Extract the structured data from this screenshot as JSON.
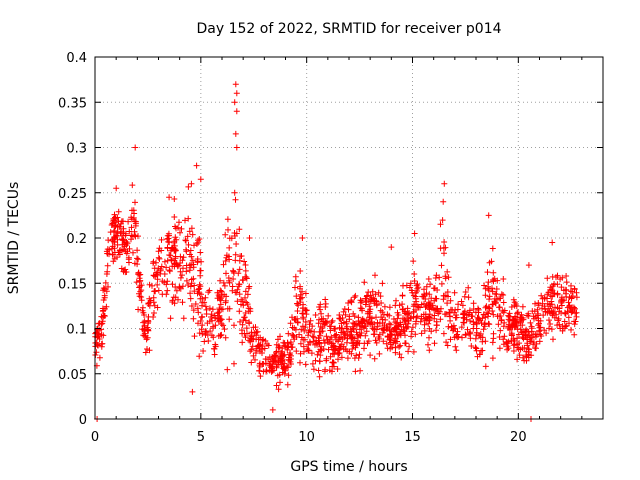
{
  "chart_data": {
    "type": "scatter",
    "title": "Day 152 of 2022, SRMTID for receiver p014",
    "xlabel": "GPS time / hours",
    "ylabel": "SRMTID / TECUs",
    "xlim": [
      0,
      24
    ],
    "ylim": [
      0,
      0.4
    ],
    "xticks": [
      0,
      5,
      10,
      15,
      20
    ],
    "xtick_labels": [
      "0",
      "5",
      "10",
      "15",
      "20"
    ],
    "yticks": [
      0,
      0.05,
      0.1,
      0.15,
      0.2,
      0.25,
      0.3,
      0.35,
      0.4
    ],
    "ytick_labels": [
      "0",
      "0.05",
      "0.1",
      "0.15",
      "0.2",
      "0.25",
      "0.3",
      "0.35",
      "0.4"
    ],
    "grid": true,
    "marker": "+",
    "color": "#ff0000",
    "envelope": {
      "x": [
        0,
        0.3,
        0.6,
        1.0,
        1.4,
        1.8,
        2.1,
        2.4,
        2.8,
        3.2,
        3.6,
        4.0,
        4.4,
        4.8,
        5.2,
        5.6,
        6.0,
        6.4,
        6.8,
        7.2,
        7.6,
        8.0,
        8.4,
        8.8,
        9.2,
        9.6,
        10.0,
        10.4,
        10.8,
        11.2,
        11.6,
        12.0,
        12.4,
        12.8,
        13.2,
        13.6,
        14.0,
        14.4,
        14.8,
        15.2,
        15.6,
        16.0,
        16.4,
        16.8,
        17.2,
        17.6,
        18.0,
        18.4,
        18.8,
        19.2,
        19.6,
        20.0,
        20.4,
        20.8,
        21.2,
        21.6,
        22.0,
        22.4,
        22.8
      ],
      "low": [
        0.05,
        0.06,
        0.1,
        0.16,
        0.15,
        0.16,
        0.1,
        0.05,
        0.09,
        0.12,
        0.1,
        0.09,
        0.07,
        0.06,
        0.06,
        0.06,
        0.05,
        0.05,
        0.06,
        0.04,
        0.04,
        0.03,
        0.02,
        0.03,
        0.03,
        0.04,
        0.05,
        0.03,
        0.04,
        0.03,
        0.05,
        0.05,
        0.04,
        0.05,
        0.05,
        0.06,
        0.06,
        0.06,
        0.05,
        0.06,
        0.06,
        0.06,
        0.07,
        0.06,
        0.05,
        0.05,
        0.05,
        0.05,
        0.05,
        0.05,
        0.05,
        0.05,
        0.04,
        0.05,
        0.07,
        0.08,
        0.07,
        0.08,
        0.08
      ],
      "high": [
        0.11,
        0.14,
        0.22,
        0.26,
        0.23,
        0.29,
        0.2,
        0.12,
        0.2,
        0.22,
        0.25,
        0.27,
        0.28,
        0.26,
        0.16,
        0.15,
        0.19,
        0.35,
        0.24,
        0.18,
        0.11,
        0.1,
        0.1,
        0.1,
        0.12,
        0.2,
        0.16,
        0.13,
        0.17,
        0.13,
        0.13,
        0.15,
        0.15,
        0.17,
        0.17,
        0.16,
        0.13,
        0.15,
        0.17,
        0.2,
        0.18,
        0.16,
        0.25,
        0.17,
        0.15,
        0.16,
        0.14,
        0.17,
        0.22,
        0.17,
        0.17,
        0.15,
        0.13,
        0.15,
        0.16,
        0.19,
        0.18,
        0.17,
        0.16
      ]
    },
    "extra_points": [
      {
        "x": 0.1,
        "y": 0.0
      },
      {
        "x": 20.6,
        "y": 0.0
      },
      {
        "x": 6.65,
        "y": 0.37
      },
      {
        "x": 6.7,
        "y": 0.36
      },
      {
        "x": 6.6,
        "y": 0.35
      },
      {
        "x": 6.7,
        "y": 0.34
      },
      {
        "x": 6.65,
        "y": 0.315
      },
      {
        "x": 6.7,
        "y": 0.3
      },
      {
        "x": 6.6,
        "y": 0.25
      },
      {
        "x": 6.7,
        "y": 0.205
      },
      {
        "x": 4.6,
        "y": 0.03
      },
      {
        "x": 8.4,
        "y": 0.01
      },
      {
        "x": 1.9,
        "y": 0.3
      },
      {
        "x": 4.8,
        "y": 0.28
      },
      {
        "x": 16.5,
        "y": 0.26
      },
      {
        "x": 16.45,
        "y": 0.24
      },
      {
        "x": 18.6,
        "y": 0.225
      },
      {
        "x": 5.0,
        "y": 0.265
      },
      {
        "x": 3.5,
        "y": 0.245
      },
      {
        "x": 1.0,
        "y": 0.255
      },
      {
        "x": 7.3,
        "y": 0.2
      },
      {
        "x": 9.8,
        "y": 0.2
      },
      {
        "x": 14.0,
        "y": 0.19
      },
      {
        "x": 15.1,
        "y": 0.205
      },
      {
        "x": 20.5,
        "y": 0.17
      },
      {
        "x": 21.6,
        "y": 0.195
      }
    ],
    "points_per_hour": 80,
    "seed": 152
  }
}
